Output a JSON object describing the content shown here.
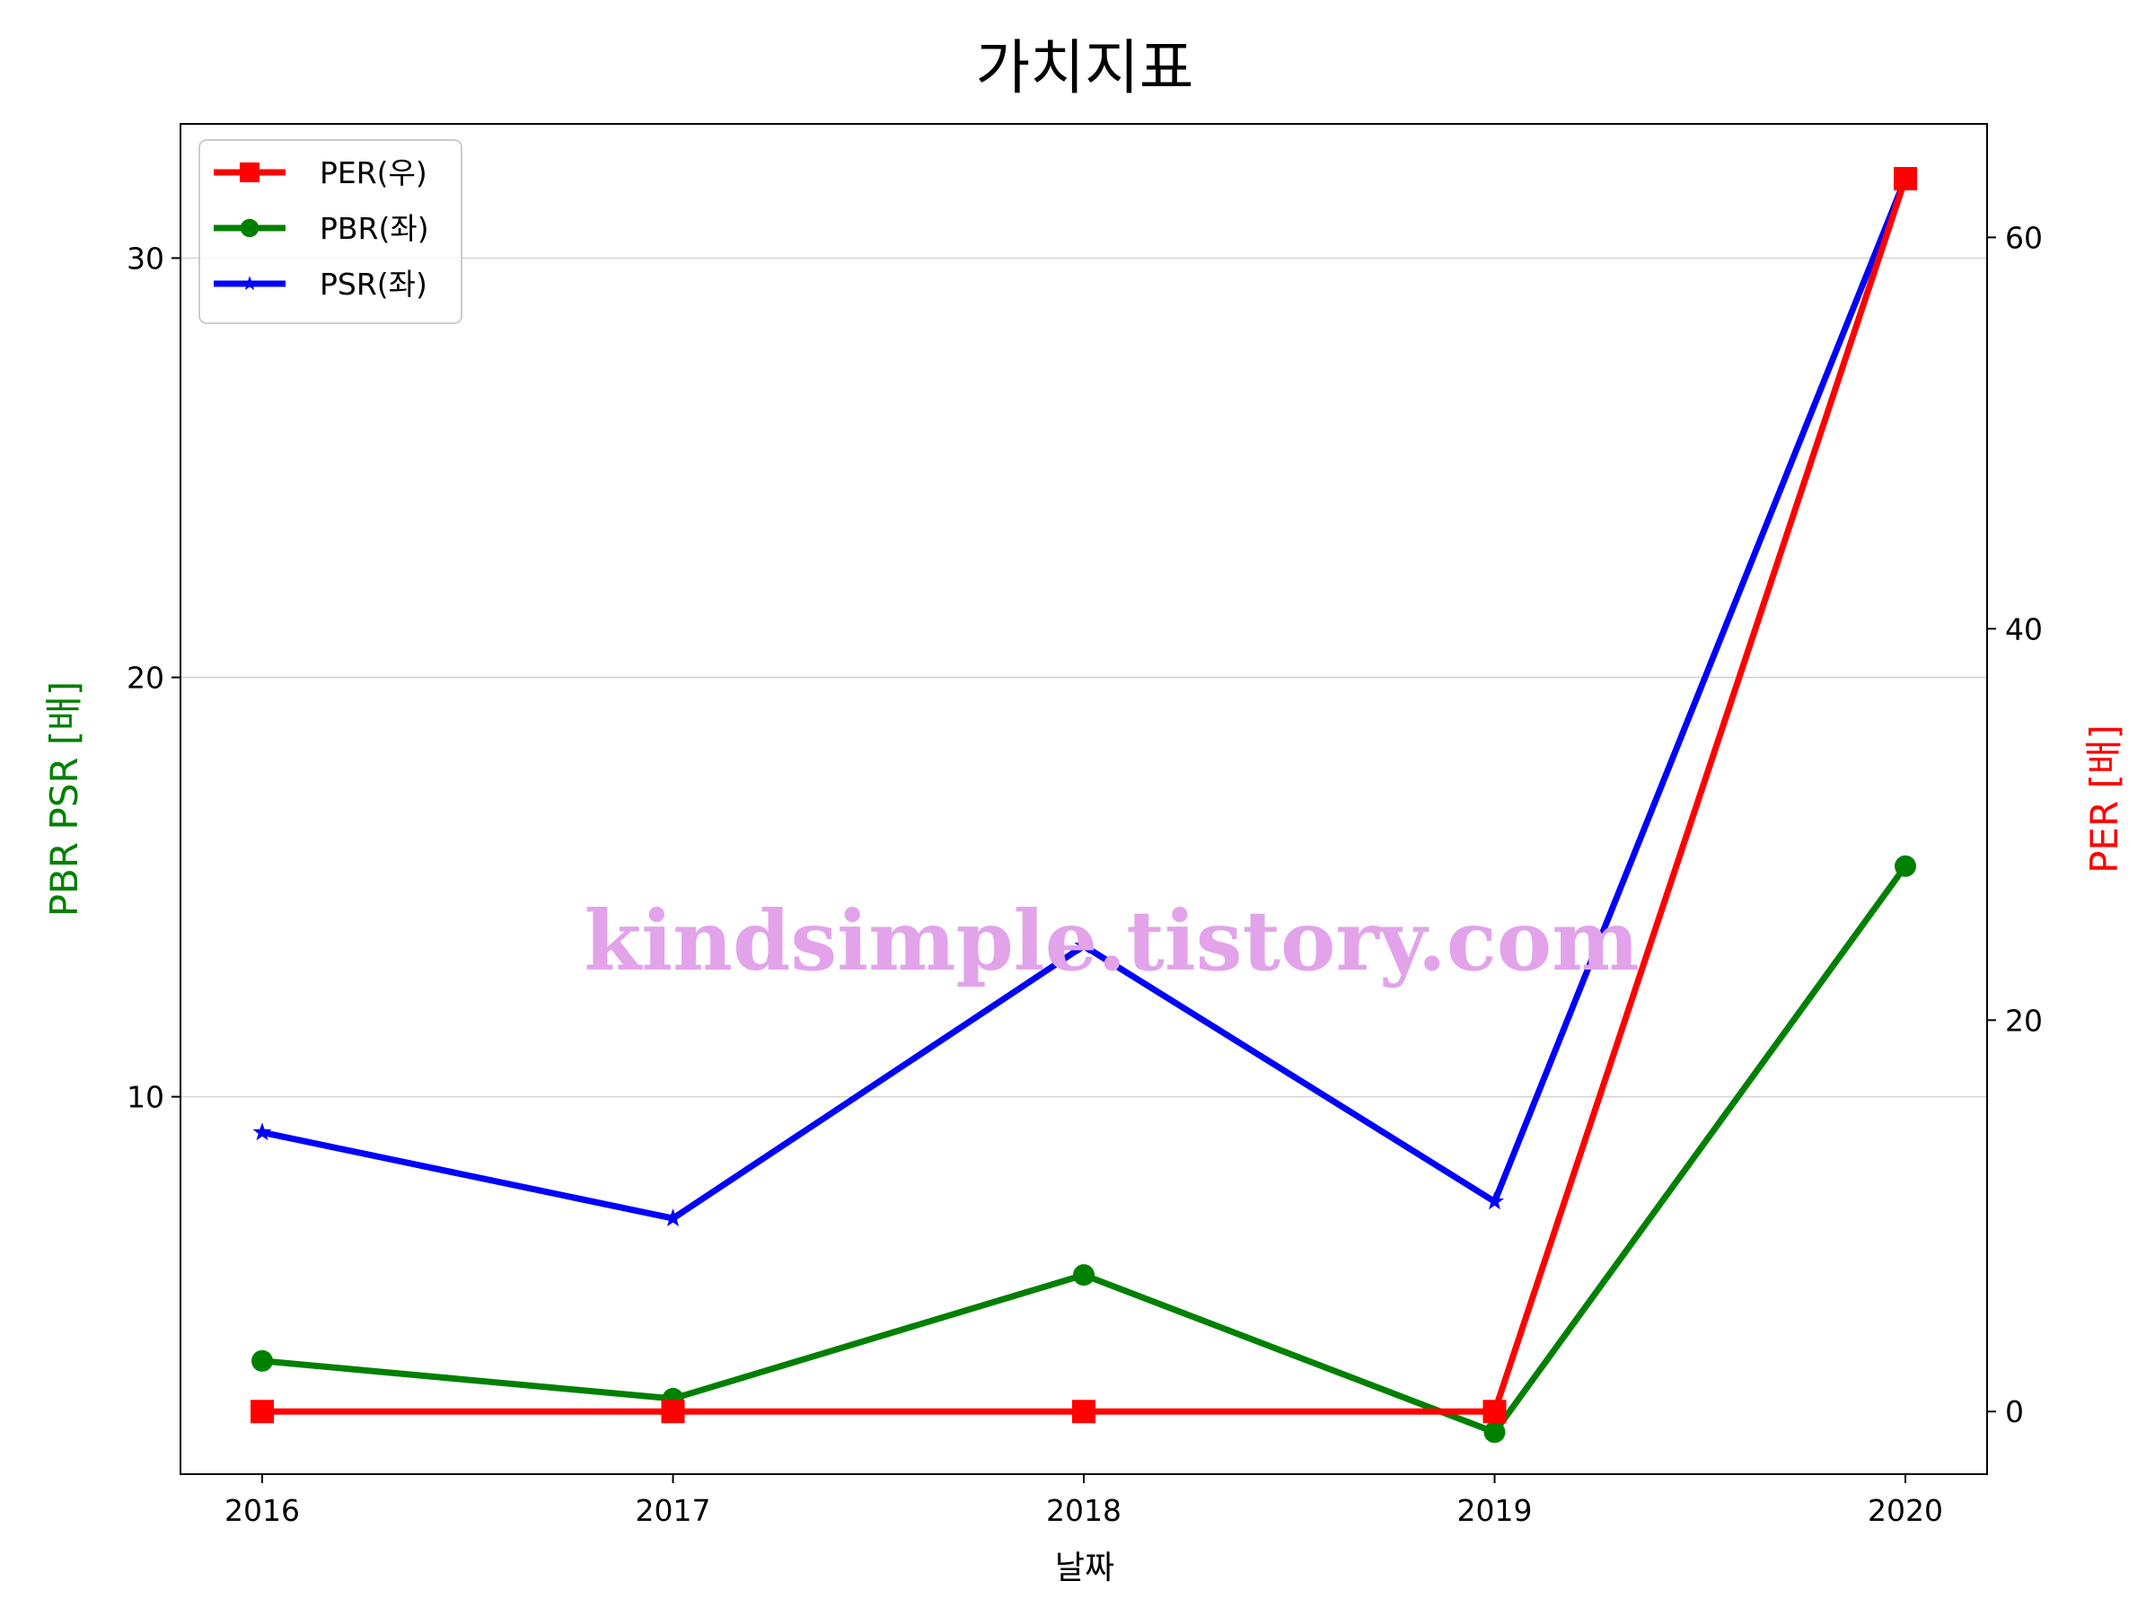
{
  "chart_data": {
    "type": "line",
    "title": "가치지표",
    "watermark": "kindsimple.tistory.com",
    "xlabel": "날짜",
    "ylabel_left": "PBR PSR [배]",
    "ylabel_right": "PER [배]",
    "ylabel_left_color": "#008000",
    "ylabel_right_color": "#ff0000",
    "categories": [
      "2016",
      "2017",
      "2018",
      "2019",
      "2020"
    ],
    "ylim_left": [
      1.0,
      33.2
    ],
    "ylim_right": [
      -3.2,
      65.8
    ],
    "yticks_left": [
      10,
      20,
      30
    ],
    "yticks_right": [
      0,
      20,
      40,
      60
    ],
    "grid": "horizontal (left axis)",
    "legend_position": "top-left",
    "series": [
      {
        "name": "PER(우)",
        "axis": "right",
        "color": "#ff0000",
        "marker": "square",
        "values": [
          0,
          0,
          0,
          0,
          63
        ]
      },
      {
        "name": "PBR(좌)",
        "axis": "left",
        "color": "#008000",
        "marker": "circle",
        "values": [
          3.7,
          2.8,
          5.75,
          2.0,
          15.5
        ]
      },
      {
        "name": "PSR(좌)",
        "axis": "left",
        "color": "#0000ff",
        "marker": "star",
        "values": [
          9.15,
          7.1,
          13.6,
          7.5,
          31.9
        ]
      }
    ]
  }
}
